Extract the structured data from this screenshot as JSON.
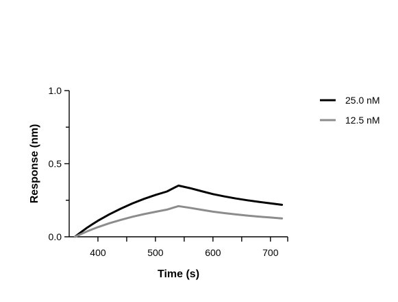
{
  "chart_data": {
    "type": "line",
    "xlabel": "Time (s)",
    "ylabel": "Response (nm)",
    "xlim": [
      350,
      730
    ],
    "ylim": [
      0,
      1.0
    ],
    "x_ticks": [
      {
        "value": 400,
        "label": "400"
      },
      {
        "value": 500,
        "label": "500"
      },
      {
        "value": 600,
        "label": "600"
      },
      {
        "value": 700,
        "label": "700"
      }
    ],
    "x_minor_ticks": [
      450,
      550,
      650
    ],
    "y_ticks": [
      {
        "value": 0.0,
        "label": "0.0"
      },
      {
        "value": 0.5,
        "label": "0.5"
      },
      {
        "value": 1.0,
        "label": "1.0"
      }
    ],
    "y_minor_ticks": [
      0.25,
      0.75
    ],
    "grid": false,
    "legend_position": "top-right",
    "series": [
      {
        "name": "25.0 nM",
        "color": "#000000",
        "x": [
          360,
          370,
          380,
          390,
          400,
          420,
          440,
          460,
          480,
          500,
          520,
          540,
          560,
          580,
          600,
          620,
          640,
          660,
          680,
          700,
          720
        ],
        "y": [
          0.0,
          0.03,
          0.059,
          0.085,
          0.11,
          0.154,
          0.193,
          0.228,
          0.259,
          0.286,
          0.31,
          0.35,
          0.333,
          0.312,
          0.292,
          0.276,
          0.262,
          0.25,
          0.239,
          0.229,
          0.219
        ]
      },
      {
        "name": "12.5 nM",
        "color": "#8c8c8c",
        "x": [
          360,
          370,
          380,
          390,
          400,
          420,
          440,
          460,
          480,
          500,
          520,
          540,
          560,
          580,
          600,
          620,
          640,
          660,
          680,
          700,
          720
        ],
        "y": [
          0.0,
          0.018,
          0.035,
          0.051,
          0.066,
          0.093,
          0.116,
          0.137,
          0.155,
          0.171,
          0.186,
          0.21,
          0.198,
          0.185,
          0.172,
          0.162,
          0.153,
          0.145,
          0.138,
          0.132,
          0.126
        ]
      }
    ]
  }
}
